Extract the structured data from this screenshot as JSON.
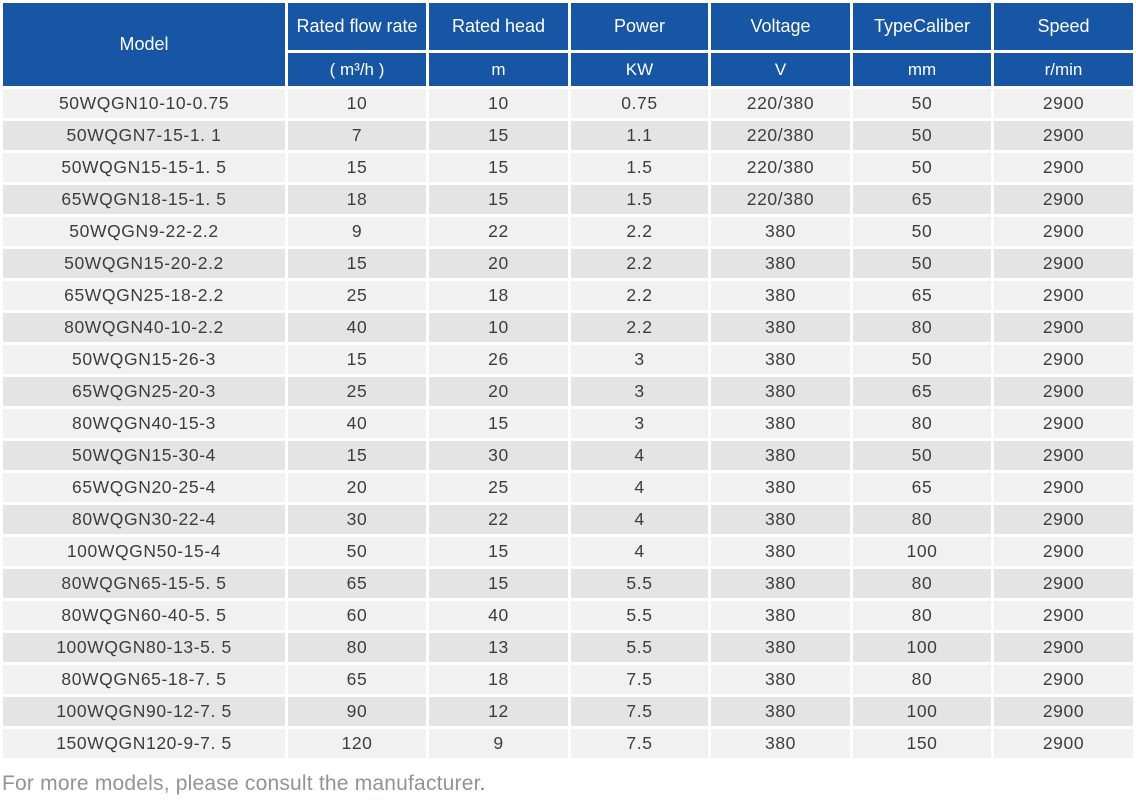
{
  "colors": {
    "header_bg": "#1656a5",
    "header_text": "#ffffff",
    "row_light": "#f1f1f1",
    "row_dark": "#e3e4e3",
    "body_text": "#3d3d3d",
    "grid_line": "#ffffff",
    "footer_text": "#909398",
    "footer_period": "#4079b8"
  },
  "chart_data": {
    "type": "table",
    "columns": [
      {
        "label": "Model",
        "unit": ""
      },
      {
        "label": "Rated flow rate",
        "unit": "( m³/h )"
      },
      {
        "label": "Rated head",
        "unit": "m"
      },
      {
        "label": "Power",
        "unit": "KW"
      },
      {
        "label": "Voltage",
        "unit": "V"
      },
      {
        "label": "TypeCaliber",
        "unit": "mm"
      },
      {
        "label": "Speed",
        "unit": "r/min"
      }
    ],
    "rows": [
      [
        "50WQGN10-10-0.75",
        "10",
        "10",
        "0.75",
        "220/380",
        "50",
        "2900"
      ],
      [
        "50WQGN7-15-1. 1",
        "7",
        "15",
        "1.1",
        "220/380",
        "50",
        "2900"
      ],
      [
        "50WQGN15-15-1. 5",
        "15",
        "15",
        "1.5",
        "220/380",
        "50",
        "2900"
      ],
      [
        "65WQGN18-15-1. 5",
        "18",
        "15",
        "1.5",
        "220/380",
        "65",
        "2900"
      ],
      [
        "50WQGN9-22-2.2",
        "9",
        "22",
        "2.2",
        "380",
        "50",
        "2900"
      ],
      [
        "50WQGN15-20-2.2",
        "15",
        "20",
        "2.2",
        "380",
        "50",
        "2900"
      ],
      [
        "65WQGN25-18-2.2",
        "25",
        "18",
        "2.2",
        "380",
        "65",
        "2900"
      ],
      [
        "80WQGN40-10-2.2",
        "40",
        "10",
        "2.2",
        "380",
        "80",
        "2900"
      ],
      [
        "50WQGN15-26-3",
        "15",
        "26",
        "3",
        "380",
        "50",
        "2900"
      ],
      [
        "65WQGN25-20-3",
        "25",
        "20",
        "3",
        "380",
        "65",
        "2900"
      ],
      [
        "80WQGN40-15-3",
        "40",
        "15",
        "3",
        "380",
        "80",
        "2900"
      ],
      [
        "50WQGN15-30-4",
        "15",
        "30",
        "4",
        "380",
        "50",
        "2900"
      ],
      [
        "65WQGN20-25-4",
        "20",
        "25",
        "4",
        "380",
        "65",
        "2900"
      ],
      [
        "80WQGN30-22-4",
        "30",
        "22",
        "4",
        "380",
        "80",
        "2900"
      ],
      [
        "100WQGN50-15-4",
        "50",
        "15",
        "4",
        "380",
        "100",
        "2900"
      ],
      [
        "80WQGN65-15-5. 5",
        "65",
        "15",
        "5.5",
        "380",
        "80",
        "2900"
      ],
      [
        "80WQGN60-40-5. 5",
        "60",
        "40",
        "5.5",
        "380",
        "80",
        "2900"
      ],
      [
        "100WQGN80-13-5. 5",
        "80",
        "13",
        "5.5",
        "380",
        "100",
        "2900"
      ],
      [
        "80WQGN65-18-7. 5",
        "65",
        "18",
        "7.5",
        "380",
        "80",
        "2900"
      ],
      [
        "100WQGN90-12-7. 5",
        "90",
        "12",
        "7.5",
        "380",
        "100",
        "2900"
      ],
      [
        "150WQGN120-9-7. 5",
        "120",
        "9",
        "7.5",
        "380",
        "150",
        "2900"
      ]
    ]
  },
  "footer": {
    "text": "For more models, please consult the manufacturer",
    "period": "."
  }
}
